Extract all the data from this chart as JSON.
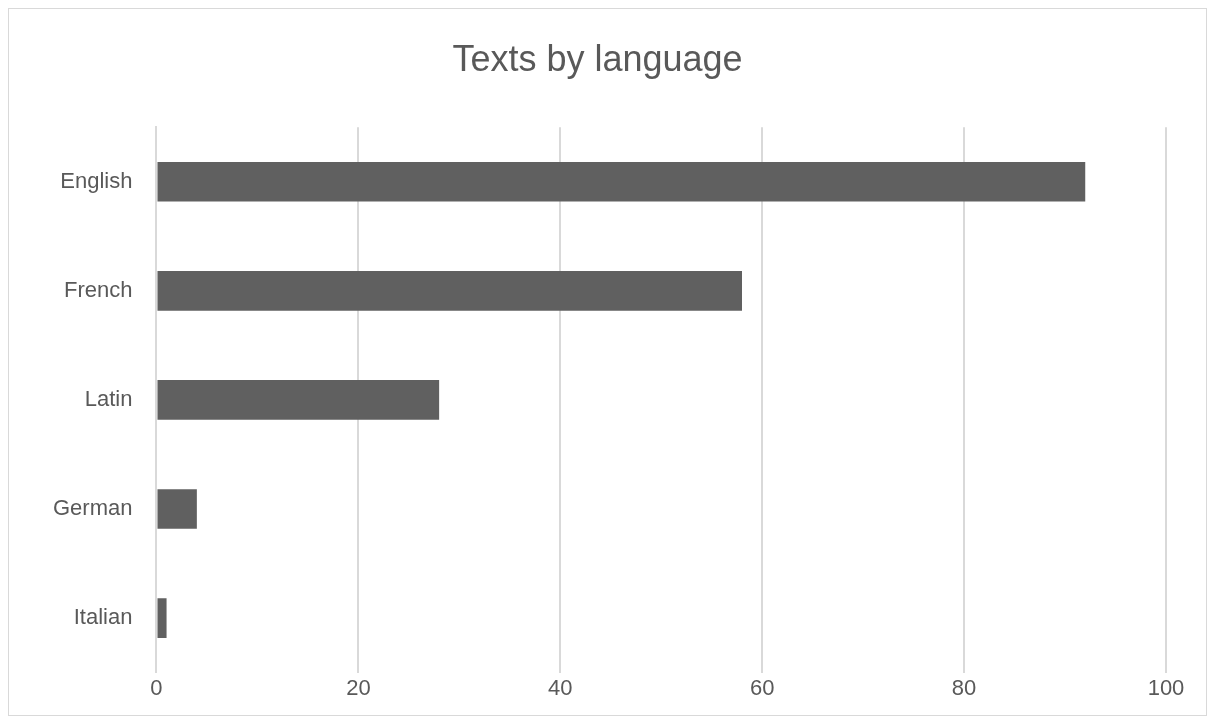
{
  "chart_data": {
    "type": "bar",
    "orientation": "horizontal",
    "title": "Texts by language",
    "categories": [
      "English",
      "French",
      "Latin",
      "German",
      "Italian"
    ],
    "values": [
      92,
      58,
      28,
      4,
      1
    ],
    "color": "#606060",
    "xlim": [
      0,
      100
    ],
    "xticks": [
      0,
      20,
      40,
      60,
      80,
      100
    ],
    "grid": "x",
    "legend": false
  }
}
